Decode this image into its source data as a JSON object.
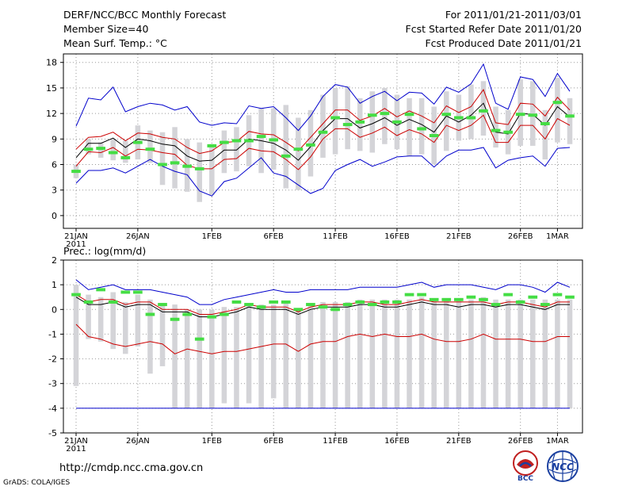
{
  "header": {
    "title": "DERF/NCC/BCC Monthly Forecast",
    "member_size": "Member Size=40",
    "variable": "Mean Surf. Temp.: °C",
    "period": "For 2011/01/21-2011/03/01",
    "fcst_started": "Fcst Started Refer Date 2011/01/20",
    "fcst_produced": "Fcst Produced Date 2011/01/21"
  },
  "footer": {
    "url": "http://cmdp.ncc.cma.gov.cn",
    "credit": "GrADS: COLA/IGES",
    "logo_left_label": "BCC",
    "logo_right_label": "NCC"
  },
  "colors": {
    "ensemble_mean": "#000000",
    "spread": "#cc0000",
    "extreme": "#0000cc",
    "observed": "#44dd44",
    "box": "#d4d4d8",
    "grid": "#999999"
  },
  "chart_data": [
    {
      "type": "line",
      "title": "Mean Surf. Temp.: °C",
      "days": 40,
      "x_tick_labels": [
        "21JAN",
        "26JAN",
        "1FEB",
        "6FEB",
        "11FEB",
        "16FEB",
        "21FEB",
        "26FEB",
        "1MAR"
      ],
      "x_tick_day_index": [
        0,
        5,
        11,
        16,
        21,
        26,
        31,
        36,
        39
      ],
      "year_label": "2011",
      "ylim": [
        -1.5,
        19
      ],
      "y_ticks": [
        0,
        3,
        6,
        9,
        12,
        15,
        18
      ],
      "series": [
        {
          "name": "max",
          "color": "blue",
          "values": [
            10.5,
            13.8,
            13.6,
            15.1,
            12.2,
            12.8,
            13.2,
            13.0,
            12.4,
            12.8,
            11.0,
            10.6,
            10.9,
            10.8,
            12.9,
            12.6,
            12.8,
            11.5,
            10.0,
            11.7,
            14.0,
            15.4,
            15.1,
            13.2,
            14.0,
            14.6,
            13.5,
            14.5,
            14.4,
            13.1,
            15.1,
            14.5,
            15.5,
            17.8,
            13.2,
            12.5,
            16.3,
            16.0,
            14.0,
            16.7,
            14.6
          ]
        },
        {
          "name": "upper",
          "color": "red",
          "values": [
            7.8,
            9.2,
            9.3,
            9.8,
            8.8,
            9.7,
            9.6,
            9.2,
            9.0,
            8.0,
            7.3,
            7.6,
            8.6,
            8.7,
            9.9,
            9.6,
            9.5,
            8.6,
            7.6,
            9.2,
            10.8,
            12.4,
            12.4,
            11.2,
            11.7,
            12.6,
            11.6,
            12.3,
            11.7,
            10.9,
            12.9,
            12.1,
            12.8,
            14.8,
            10.9,
            10.7,
            13.2,
            13.1,
            11.7,
            13.9,
            12.4
          ]
        },
        {
          "name": "mean",
          "color": "black",
          "values": [
            6.8,
            8.5,
            8.5,
            9.1,
            8.0,
            9.0,
            8.8,
            8.4,
            8.2,
            7.0,
            6.4,
            6.5,
            7.7,
            7.7,
            9.0,
            8.8,
            8.5,
            7.7,
            6.5,
            8.1,
            10.0,
            11.4,
            11.4,
            10.3,
            10.8,
            11.5,
            10.6,
            11.3,
            10.7,
            9.8,
            11.7,
            11.0,
            11.8,
            13.2,
            9.8,
            9.6,
            12.0,
            11.9,
            10.6,
            12.8,
            11.6
          ]
        },
        {
          "name": "lower",
          "color": "red",
          "values": [
            5.8,
            7.5,
            7.4,
            8.0,
            7.0,
            7.8,
            7.7,
            7.4,
            7.2,
            5.9,
            5.5,
            5.5,
            6.6,
            6.7,
            7.9,
            7.6,
            7.5,
            6.6,
            5.4,
            6.9,
            9.0,
            10.2,
            10.2,
            9.2,
            9.7,
            10.4,
            9.4,
            10.1,
            9.6,
            8.6,
            10.6,
            10.0,
            10.6,
            11.8,
            8.6,
            8.6,
            10.6,
            10.6,
            9.0,
            11.4,
            10.6
          ]
        },
        {
          "name": "min",
          "color": "blue",
          "values": [
            3.8,
            5.3,
            5.3,
            5.6,
            5.0,
            5.8,
            6.6,
            5.8,
            5.2,
            4.8,
            2.9,
            2.3,
            4.0,
            4.4,
            5.6,
            6.8,
            5.0,
            4.6,
            3.6,
            2.6,
            3.2,
            5.3,
            6.0,
            6.6,
            5.8,
            6.3,
            6.9,
            7.0,
            7.0,
            5.7,
            7.0,
            7.7,
            7.7,
            8.0,
            5.6,
            6.5,
            6.8,
            7.0,
            5.8,
            7.9,
            8.0
          ]
        }
      ],
      "box_ranges": [
        [
          4.4,
          6.0
        ],
        [
          7.2,
          9.0
        ],
        [
          6.8,
          8.6
        ],
        [
          6.5,
          9.0
        ],
        [
          6.2,
          8.8
        ],
        [
          6.6,
          10.6
        ],
        [
          6.2,
          10.0
        ],
        [
          3.6,
          9.8
        ],
        [
          3.2,
          10.4
        ],
        [
          2.8,
          9.0
        ],
        [
          1.6,
          8.6
        ],
        [
          2.4,
          8.4
        ],
        [
          5.0,
          10.0
        ],
        [
          5.2,
          10.4
        ],
        [
          5.8,
          11.8
        ],
        [
          5.0,
          12.6
        ],
        [
          5.4,
          12.6
        ],
        [
          3.2,
          13.0
        ],
        [
          3.0,
          11.5
        ],
        [
          4.6,
          12.4
        ],
        [
          6.8,
          14.2
        ],
        [
          7.2,
          15.0
        ],
        [
          7.8,
          15.2
        ],
        [
          7.6,
          13.8
        ],
        [
          7.4,
          14.6
        ],
        [
          8.4,
          15.0
        ],
        [
          7.8,
          14.2
        ],
        [
          7.0,
          13.8
        ],
        [
          7.2,
          13.8
        ],
        [
          6.0,
          12.8
        ],
        [
          7.6,
          14.6
        ],
        [
          8.8,
          14.2
        ],
        [
          9.0,
          15.4
        ],
        [
          9.4,
          15.8
        ],
        [
          8.0,
          12.8
        ],
        [
          7.2,
          12.4
        ],
        [
          8.2,
          16.0
        ],
        [
          8.2,
          15.8
        ],
        [
          6.6,
          12.4
        ],
        [
          8.6,
          16.2
        ],
        [
          8.4,
          13.8
        ]
      ],
      "observed": [
        5.2,
        7.8,
        7.9,
        7.4,
        6.8,
        8.6,
        7.8,
        6.0,
        6.2,
        5.8,
        5.5,
        8.2,
        8.6,
        8.8,
        8.8,
        9.3,
        8.9,
        7.0,
        7.8,
        8.3,
        9.8,
        11.5,
        10.7,
        11.0,
        11.8,
        12.0,
        11.0,
        11.9,
        10.2,
        9.4,
        11.9,
        11.5,
        11.5,
        12.3,
        10.0,
        9.8,
        11.9,
        11.8,
        10.8,
        13.3,
        11.7
      ]
    },
    {
      "type": "line",
      "title": "Prec.: log(mm/d)",
      "days": 40,
      "x_tick_labels": [
        "21JAN",
        "26JAN",
        "1FEB",
        "6FEB",
        "11FEB",
        "16FEB",
        "21FEB",
        "26FEB",
        "1MAR"
      ],
      "x_tick_day_index": [
        0,
        5,
        11,
        16,
        21,
        26,
        31,
        36,
        39
      ],
      "year_label": "2011",
      "ylim": [
        -5,
        2
      ],
      "y_ticks": [
        -5,
        -4,
        -3,
        -2,
        -1,
        0,
        1,
        2
      ],
      "series": [
        {
          "name": "max",
          "color": "blue",
          "values": [
            1.2,
            0.8,
            0.9,
            1.0,
            0.8,
            0.8,
            0.8,
            0.7,
            0.6,
            0.5,
            0.2,
            0.2,
            0.4,
            0.5,
            0.6,
            0.7,
            0.8,
            0.7,
            0.7,
            0.8,
            0.8,
            0.8,
            0.8,
            0.9,
            0.9,
            0.9,
            0.9,
            1.0,
            1.1,
            0.9,
            1.0,
            1.0,
            1.0,
            0.9,
            0.8,
            1.0,
            1.0,
            0.9,
            0.7,
            1.1,
            0.9
          ]
        },
        {
          "name": "upper",
          "color": "red",
          "values": [
            0.6,
            0.3,
            0.4,
            0.4,
            0.2,
            0.3,
            0.3,
            0.0,
            0.0,
            0.0,
            -0.2,
            -0.2,
            -0.1,
            0.0,
            0.2,
            0.1,
            0.1,
            0.1,
            -0.1,
            0.1,
            0.2,
            0.2,
            0.2,
            0.3,
            0.3,
            0.2,
            0.2,
            0.3,
            0.4,
            0.3,
            0.3,
            0.3,
            0.3,
            0.3,
            0.2,
            0.3,
            0.3,
            0.2,
            0.1,
            0.3,
            0.3
          ]
        },
        {
          "name": "mean",
          "color": "black",
          "values": [
            0.5,
            0.2,
            0.2,
            0.3,
            0.1,
            0.2,
            0.2,
            -0.1,
            -0.1,
            -0.1,
            -0.3,
            -0.3,
            -0.2,
            -0.1,
            0.1,
            0.0,
            0.0,
            0.0,
            -0.2,
            0.0,
            0.1,
            0.1,
            0.1,
            0.2,
            0.2,
            0.1,
            0.1,
            0.2,
            0.3,
            0.2,
            0.2,
            0.1,
            0.2,
            0.2,
            0.1,
            0.2,
            0.2,
            0.1,
            0.0,
            0.2,
            0.2
          ]
        },
        {
          "name": "min",
          "color": "red",
          "values": [
            -0.6,
            -1.1,
            -1.2,
            -1.4,
            -1.5,
            -1.4,
            -1.3,
            -1.4,
            -1.8,
            -1.6,
            -1.7,
            -1.8,
            -1.7,
            -1.7,
            -1.6,
            -1.5,
            -1.4,
            -1.4,
            -1.7,
            -1.4,
            -1.3,
            -1.3,
            -1.1,
            -1.0,
            -1.1,
            -1.0,
            -1.1,
            -1.1,
            -1.0,
            -1.2,
            -1.3,
            -1.3,
            -1.2,
            -1.0,
            -1.2,
            -1.2,
            -1.2,
            -1.3,
            -1.3,
            -1.1,
            -1.1
          ]
        },
        {
          "name": "floor",
          "color": "blue",
          "values": [
            -4,
            -4,
            -4,
            -4,
            -4,
            -4,
            -4,
            -4,
            -4,
            -4,
            -4,
            -4,
            -4,
            -4,
            -4,
            -4,
            -4,
            -4,
            -4,
            -4,
            -4,
            -4,
            -4,
            -4,
            -4,
            -4,
            -4,
            -4,
            -4,
            -4,
            -4,
            -4,
            -4,
            -4,
            -4,
            -4,
            -4,
            -4,
            -4,
            -4,
            -4
          ]
        }
      ],
      "box_ranges": [
        [
          -3.1,
          1.0
        ],
        [
          -1.2,
          0.6
        ],
        [
          -1.3,
          0.5
        ],
        [
          -1.6,
          0.7
        ],
        [
          -1.8,
          0.3
        ],
        [
          -1.5,
          0.6
        ],
        [
          -2.6,
          0.4
        ],
        [
          -2.3,
          0.2
        ],
        [
          -4.0,
          0.2
        ],
        [
          -4.0,
          0.0
        ],
        [
          -4.0,
          0.0
        ],
        [
          -4.0,
          0.0
        ],
        [
          -3.8,
          0.1
        ],
        [
          -4.0,
          0.1
        ],
        [
          -3.8,
          0.2
        ],
        [
          -4.0,
          0.2
        ],
        [
          -3.6,
          0.2
        ],
        [
          -4.0,
          0.3
        ],
        [
          -4.0,
          0.0
        ],
        [
          -4.0,
          0.2
        ],
        [
          -4.0,
          0.3
        ],
        [
          -4.0,
          0.3
        ],
        [
          -4.0,
          0.3
        ],
        [
          -4.0,
          0.4
        ],
        [
          -4.0,
          0.4
        ],
        [
          -4.0,
          0.4
        ],
        [
          -4.0,
          0.4
        ],
        [
          -4.0,
          0.4
        ],
        [
          -4.0,
          0.5
        ],
        [
          -4.0,
          0.4
        ],
        [
          -4.0,
          0.4
        ],
        [
          -4.0,
          0.4
        ],
        [
          -4.0,
          0.4
        ],
        [
          -4.0,
          0.5
        ],
        [
          -4.0,
          0.4
        ],
        [
          -4.0,
          0.4
        ],
        [
          -4.0,
          0.4
        ],
        [
          -4.0,
          0.4
        ],
        [
          -4.0,
          0.4
        ],
        [
          -4.0,
          0.4
        ],
        [
          -4.0,
          0.4
        ]
      ],
      "observed": [
        0.6,
        0.3,
        0.8,
        0.3,
        0.7,
        0.7,
        -0.2,
        0.2,
        -0.4,
        -0.2,
        -1.2,
        -0.3,
        -0.2,
        0.3,
        0.2,
        0.1,
        0.3,
        0.3,
        0.0,
        0.2,
        0.1,
        0.0,
        0.2,
        0.3,
        0.2,
        0.3,
        0.3,
        0.6,
        0.6,
        0.4,
        0.4,
        0.4,
        0.5,
        0.4,
        0.2,
        0.6,
        0.3,
        0.5,
        0.2,
        0.6,
        0.5
      ]
    }
  ]
}
